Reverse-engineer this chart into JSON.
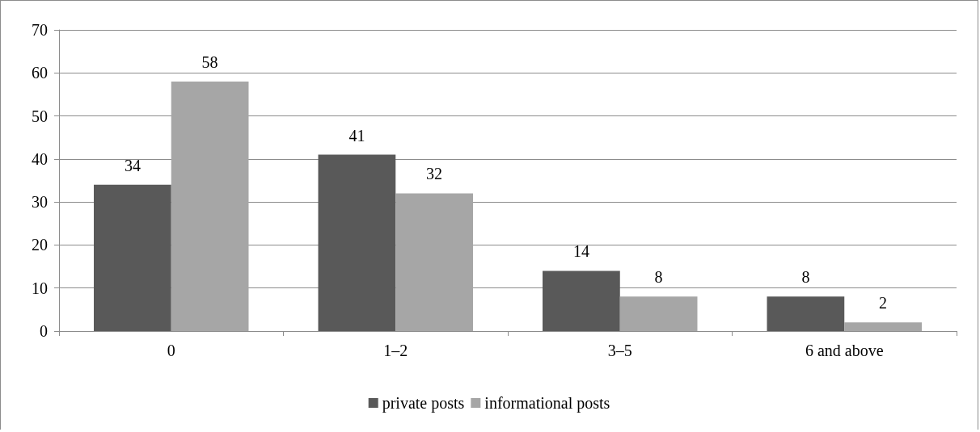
{
  "chart_data": {
    "type": "bar",
    "categories": [
      "0",
      "1–2",
      "3–5",
      "6 and above"
    ],
    "series": [
      {
        "name": "private posts",
        "color": "#595959",
        "values": [
          34,
          41,
          14,
          8
        ]
      },
      {
        "name": "informational posts",
        "color": "#a6a6a6",
        "values": [
          58,
          32,
          8,
          2
        ]
      }
    ],
    "ylim": [
      0,
      70
    ],
    "yticks": [
      0,
      10,
      20,
      30,
      40,
      50,
      60,
      70
    ],
    "grid": "y",
    "legend": "bottom",
    "data_labels": true
  }
}
